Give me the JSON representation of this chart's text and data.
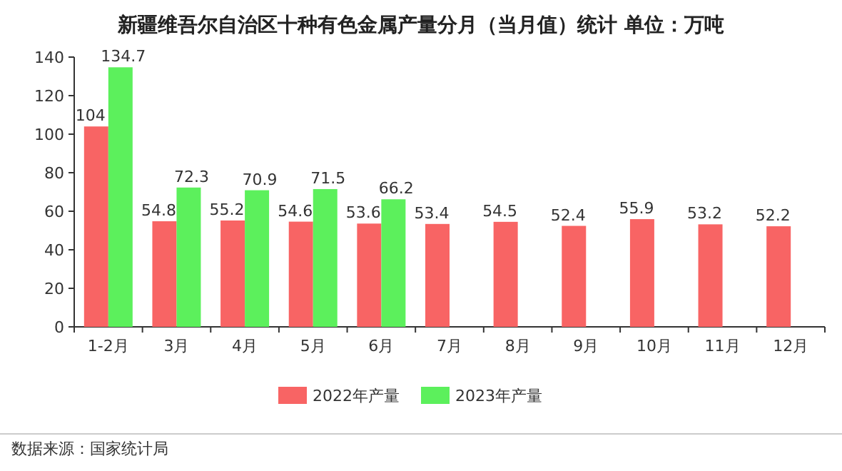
{
  "chart_data": {
    "type": "bar",
    "title": "新疆维吾尔自治区十种有色金属产量分月（当月值）统计 单位：万吨",
    "categories": [
      "1-2月",
      "3月",
      "4月",
      "5月",
      "6月",
      "7月",
      "8月",
      "9月",
      "10月",
      "11月",
      "12月"
    ],
    "series": [
      {
        "name": "2022年产量",
        "color": "#f86464",
        "values": [
          104,
          54.8,
          55.2,
          54.6,
          53.6,
          53.4,
          54.5,
          52.4,
          55.9,
          53.2,
          52.2
        ]
      },
      {
        "name": "2023年产量",
        "color": "#5cf05c",
        "values": [
          134.7,
          72.3,
          70.9,
          71.5,
          66.2,
          null,
          null,
          null,
          null,
          null,
          null
        ]
      }
    ],
    "ylim": [
      0,
      140
    ],
    "yticks": [
      0,
      20,
      40,
      60,
      80,
      100,
      120,
      140
    ],
    "data_labels": true,
    "legend": "bottom",
    "grid": false,
    "annotations": [
      "数据来源：国家统计局"
    ]
  }
}
